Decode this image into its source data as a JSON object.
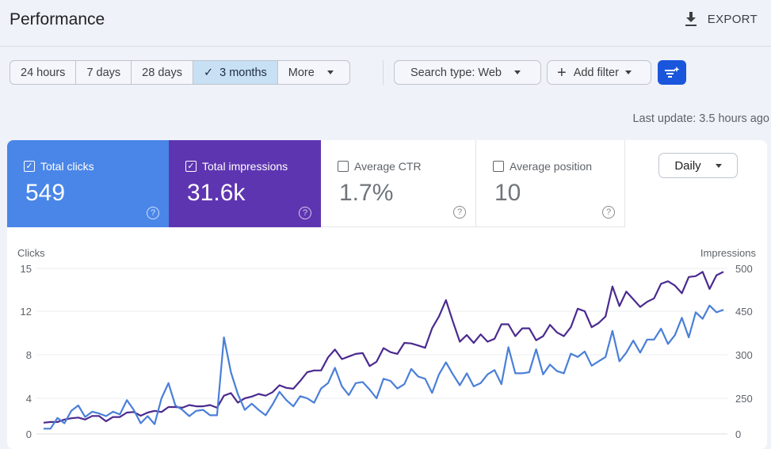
{
  "header": {
    "title": "Performance",
    "export_label": "EXPORT"
  },
  "date_ranges": [
    {
      "label": "24 hours",
      "selected": false
    },
    {
      "label": "7 days",
      "selected": false
    },
    {
      "label": "28 days",
      "selected": false
    },
    {
      "label": "3 months",
      "selected": true
    },
    {
      "label": "More",
      "selected": false
    }
  ],
  "check_glyph": "✓",
  "filters": {
    "search_type": "Search type: Web",
    "add_filter": "Add filter"
  },
  "last_update": "Last update: 3.5 hours ago",
  "metrics": [
    {
      "label": "Total clicks",
      "value": "549",
      "checked": true,
      "color": "#4a86e8"
    },
    {
      "label": "Total impressions",
      "value": "31.6k",
      "checked": true,
      "color": "#5e35b1"
    },
    {
      "label": "Average CTR",
      "value": "1.7%",
      "checked": false
    },
    {
      "label": "Average position",
      "value": "10",
      "checked": false
    }
  ],
  "help_glyph": "?",
  "granularity": "Daily",
  "chart_data": {
    "type": "line",
    "ylabel_left": "Clicks",
    "ylabel_right": "Impressions",
    "left_ticks": [
      0,
      4,
      8,
      12,
      15
    ],
    "right_ticks": [
      0,
      250,
      300,
      450,
      500
    ],
    "grid": true,
    "series": [
      {
        "name": "Clicks",
        "axis": "left",
        "color": "#4a7fd8",
        "values": [
          0.6,
          0.6,
          1.8,
          1.2,
          2.6,
          3.2,
          1.9,
          2.5,
          2.3,
          2.0,
          2.5,
          2.2,
          3.8,
          2.7,
          1.2,
          2.0,
          1.1,
          4.0,
          5.4,
          3.2,
          2.7,
          2.0,
          2.6,
          2.7,
          2.1,
          2.1,
          9.6,
          6.4,
          4.4,
          2.7,
          3.4,
          2.7,
          2.1,
          3.3,
          4.6,
          3.8,
          3.1,
          4.2,
          4.0,
          3.5,
          4.9,
          5.4,
          6.8,
          5.1,
          4.3,
          5.4,
          5.5,
          4.8,
          4.0,
          5.8,
          5.6,
          4.9,
          5.3,
          6.7,
          6.0,
          5.8,
          4.5,
          6.2,
          7.3,
          6.2,
          5.2,
          6.3,
          5.1,
          5.4,
          6.2,
          6.6,
          5.3,
          8.7,
          6.3,
          6.3,
          6.4,
          8.5,
          6.2,
          7.1,
          6.5,
          6.3,
          8.1,
          7.8,
          8.3,
          7.0,
          7.4,
          7.8,
          10.2,
          7.4,
          8.2,
          9.3,
          8.2,
          9.4,
          9.4,
          10.4,
          9.0,
          9.8,
          11.4,
          9.6,
          11.9,
          11.3,
          12.4,
          11.9,
          12.1
        ]
      },
      {
        "name": "Impressions",
        "axis": "right",
        "color": "#4b2a8f",
        "values": [
          79,
          84,
          84,
          101,
          110,
          115,
          101,
          126,
          126,
          89,
          119,
          119,
          150,
          154,
          128,
          150,
          162,
          154,
          189,
          189,
          184,
          203,
          194,
          194,
          203,
          184,
          253,
          256,
          220,
          250,
          252,
          255,
          253,
          257,
          265,
          262,
          261,
          270,
          280,
          282,
          282,
          297,
          318,
          295,
          298,
          303,
          306,
          287,
          292,
          323,
          309,
          303,
          341,
          339,
          332,
          324,
          391,
          432,
          463,
          414,
          345,
          368,
          341,
          370,
          345,
          355,
          405,
          405,
          364,
          391,
          391,
          350,
          364,
          403,
          377,
          364,
          395,
          453,
          450,
          395,
          409,
          432,
          479,
          456,
          473,
          464,
          455,
          461,
          465,
          482,
          485,
          480,
          471,
          490,
          491,
          496,
          476,
          492,
          496
        ]
      }
    ]
  }
}
